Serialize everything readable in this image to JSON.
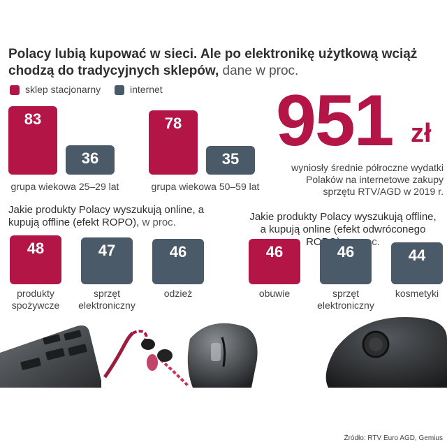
{
  "title_bold": "Polacy lubią kupować w sieci. Ale po elektronikę użytkową wciąż chodzą do tradycyjnych sklepów,",
  "title_rest": " dane w proc.",
  "legend": [
    {
      "label": "sklep stacjonarny",
      "color": "#b31546"
    },
    {
      "label": "internet",
      "color": "#4a5a69"
    }
  ],
  "highlight": {
    "number": "951",
    "unit": "zł",
    "caption": "wyniosły średnie półroczne wydatki Polaków na internetowe zakupy sprzętu RTV/AGD w 2019 r."
  },
  "section_left": {
    "title": "Jakie produkty Polacy wyszukują online, a kupują offline (efekt ROPO),",
    "unit": " w proc."
  },
  "section_right": {
    "title": "Jakie produkty Polacy wyszukują offline, a kupują online (efekt odwróconego ROPO),",
    "unit": " w proc."
  },
  "source": "Źródło: RTV Euro AGD, Gemius",
  "chart_data": [
    {
      "type": "bar",
      "categories": [
        "grupa wiekowa 25–29 lat",
        "grupa wiekowa 50–59 lat"
      ],
      "series": [
        {
          "name": "sklep stacjonarny",
          "values": [
            83,
            78
          ],
          "color": "#b31546"
        },
        {
          "name": "internet",
          "values": [
            36,
            35
          ],
          "color": "#4a5a69"
        }
      ]
    },
    {
      "type": "bar",
      "categories": [
        "produkty spożywcze",
        "sprzęt elektroniczny",
        "odzież"
      ],
      "values": [
        48,
        47,
        46
      ],
      "colors": [
        "#b31546",
        "#4a5a69",
        "#4a5a69"
      ]
    },
    {
      "type": "bar",
      "categories": [
        "obuwie",
        "sprzęt elektroniczny",
        "kosmetyki"
      ],
      "values": [
        46,
        46,
        44
      ],
      "colors": [
        "#b31546",
        "#4a5a69",
        "#4a5a69"
      ]
    }
  ]
}
